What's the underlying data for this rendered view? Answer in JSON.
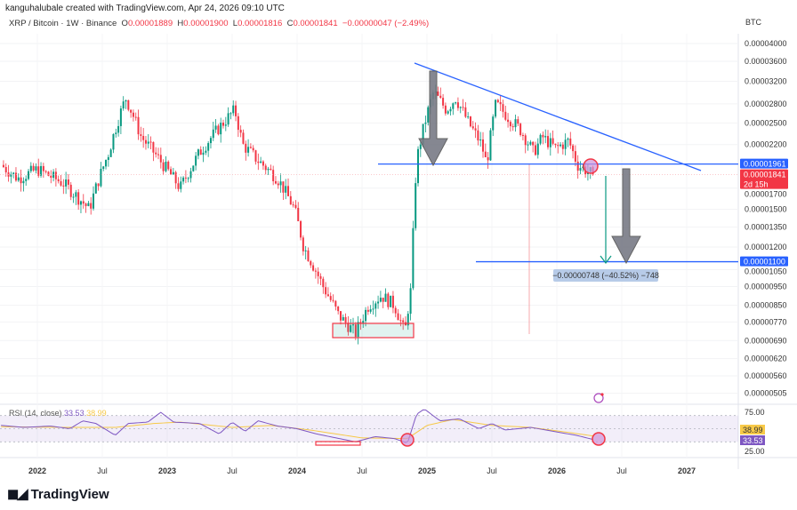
{
  "header": {
    "credit": "kanguhalubale created with TradingView.com, Apr 24, 2026 09:10 UTC",
    "symbol": "XRP / Bitcoin · 1W · Binance",
    "o_label": "O",
    "o": "0.00001889",
    "h_label": "H",
    "h": "0.00001900",
    "l_label": "L",
    "l": "0.00001816",
    "c_label": "C",
    "c": "0.00001841",
    "change": "−0.00000047 (−2.49%)",
    "currency": "BTC"
  },
  "colors": {
    "up": "#089981",
    "down": "#f23645",
    "line": "#2962ff",
    "rsi": "#7e57c2",
    "ma": "#f7c948"
  },
  "chart_data": {
    "type": "candlestick",
    "title": "XRP / Bitcoin · 1W · Binance",
    "scale": "log",
    "price_unit": "sats (1e-8 BTC)",
    "y_ticks": [
      "0.00004000",
      "0.00003600",
      "0.00003200",
      "0.00002800",
      "0.00002500",
      "0.00002200",
      "0.00001700",
      "0.00001500",
      "0.00001350",
      "0.00001200",
      "0.00001050",
      "0.00000950",
      "0.00000850",
      "0.00000770",
      "0.00000690",
      "0.00000620",
      "0.00000560",
      "0.00000505"
    ],
    "x_ticks": [
      "2022",
      "Jul",
      "2023",
      "Jul",
      "2024",
      "Jul",
      "2025",
      "Jul",
      "2026",
      "Jul",
      "2027"
    ],
    "x_tick_years": [
      2022,
      2022.5,
      2023,
      2023.5,
      2024,
      2024.5,
      2025,
      2025.5,
      2026,
      2026.5,
      2027
    ],
    "path": [
      [
        2021.72,
        1950
      ],
      [
        2021.85,
        1800
      ],
      [
        2022.0,
        1900
      ],
      [
        2022.2,
        1750
      ],
      [
        2022.4,
        1500
      ],
      [
        2022.55,
        2100
      ],
      [
        2022.68,
        2900
      ],
      [
        2022.8,
        2300
      ],
      [
        2022.97,
        1950
      ],
      [
        2023.1,
        1700
      ],
      [
        2023.25,
        2100
      ],
      [
        2023.52,
        2700
      ],
      [
        2023.58,
        2200
      ],
      [
        2023.7,
        2000
      ],
      [
        2023.85,
        1800
      ],
      [
        2023.98,
        1500
      ],
      [
        2024.05,
        1200
      ],
      [
        2024.2,
        950
      ],
      [
        2024.32,
        800
      ],
      [
        2024.45,
        720
      ],
      [
        2024.55,
        850
      ],
      [
        2024.65,
        900
      ],
      [
        2024.75,
        850
      ],
      [
        2024.83,
        720
      ],
      [
        2024.88,
        950
      ],
      [
        2024.92,
        2000
      ],
      [
        2024.97,
        2400
      ],
      [
        2025.05,
        3000
      ],
      [
        2025.15,
        2700
      ],
      [
        2025.22,
        2900
      ],
      [
        2025.32,
        2500
      ],
      [
        2025.42,
        2200
      ],
      [
        2025.46,
        1950
      ],
      [
        2025.53,
        2800
      ],
      [
        2025.62,
        2600
      ],
      [
        2025.72,
        2400
      ],
      [
        2025.82,
        2100
      ],
      [
        2025.89,
        2300
      ],
      [
        2025.99,
        2150
      ],
      [
        2026.09,
        2250
      ],
      [
        2026.16,
        1950
      ],
      [
        2026.28,
        1841
      ]
    ],
    "levels": [
      {
        "name": "support",
        "value": "0.00001961"
      },
      {
        "name": "target",
        "value": "0.00001100"
      }
    ],
    "current_price": "0.00001841",
    "countdown": "2d 15h",
    "measure": "−0.00000748 (−40.52%) −748",
    "rsi": {
      "label": "RSI (14, close)",
      "value": "33.53",
      "ma": "38.99",
      "ticks": [
        "75.00",
        "25.00"
      ],
      "band": [
        30,
        70
      ],
      "path": [
        [
          2021.72,
          55
        ],
        [
          2021.9,
          52
        ],
        [
          2022.1,
          54
        ],
        [
          2022.25,
          50
        ],
        [
          2022.35,
          62
        ],
        [
          2022.45,
          58
        ],
        [
          2022.55,
          46
        ],
        [
          2022.6,
          40
        ],
        [
          2022.7,
          58
        ],
        [
          2022.85,
          60
        ],
        [
          2022.95,
          75
        ],
        [
          2023.05,
          60
        ],
        [
          2023.25,
          58
        ],
        [
          2023.4,
          42
        ],
        [
          2023.5,
          60
        ],
        [
          2023.6,
          46
        ],
        [
          2023.7,
          62
        ],
        [
          2023.85,
          54
        ],
        [
          2024.0,
          50
        ],
        [
          2024.15,
          42
        ],
        [
          2024.3,
          36
        ],
        [
          2024.45,
          30
        ],
        [
          2024.6,
          38
        ],
        [
          2024.75,
          35
        ],
        [
          2024.85,
          28
        ],
        [
          2024.92,
          72
        ],
        [
          2024.98,
          80
        ],
        [
          2025.1,
          62
        ],
        [
          2025.25,
          65
        ],
        [
          2025.4,
          50
        ],
        [
          2025.5,
          58
        ],
        [
          2025.6,
          48
        ],
        [
          2025.8,
          52
        ],
        [
          2026.0,
          45
        ],
        [
          2026.15,
          40
        ],
        [
          2026.28,
          33.53
        ]
      ],
      "ma_path": [
        [
          2021.72,
          53
        ],
        [
          2022.2,
          52
        ],
        [
          2022.6,
          52
        ],
        [
          2022.9,
          58
        ],
        [
          2023.1,
          60
        ],
        [
          2023.5,
          52
        ],
        [
          2023.8,
          55
        ],
        [
          2024.1,
          48
        ],
        [
          2024.5,
          36
        ],
        [
          2024.85,
          35
        ],
        [
          2025.0,
          55
        ],
        [
          2025.2,
          64
        ],
        [
          2025.5,
          55
        ],
        [
          2025.8,
          52
        ],
        [
          2026.1,
          44
        ],
        [
          2026.28,
          38.99
        ]
      ]
    }
  },
  "brand": "TradingView"
}
